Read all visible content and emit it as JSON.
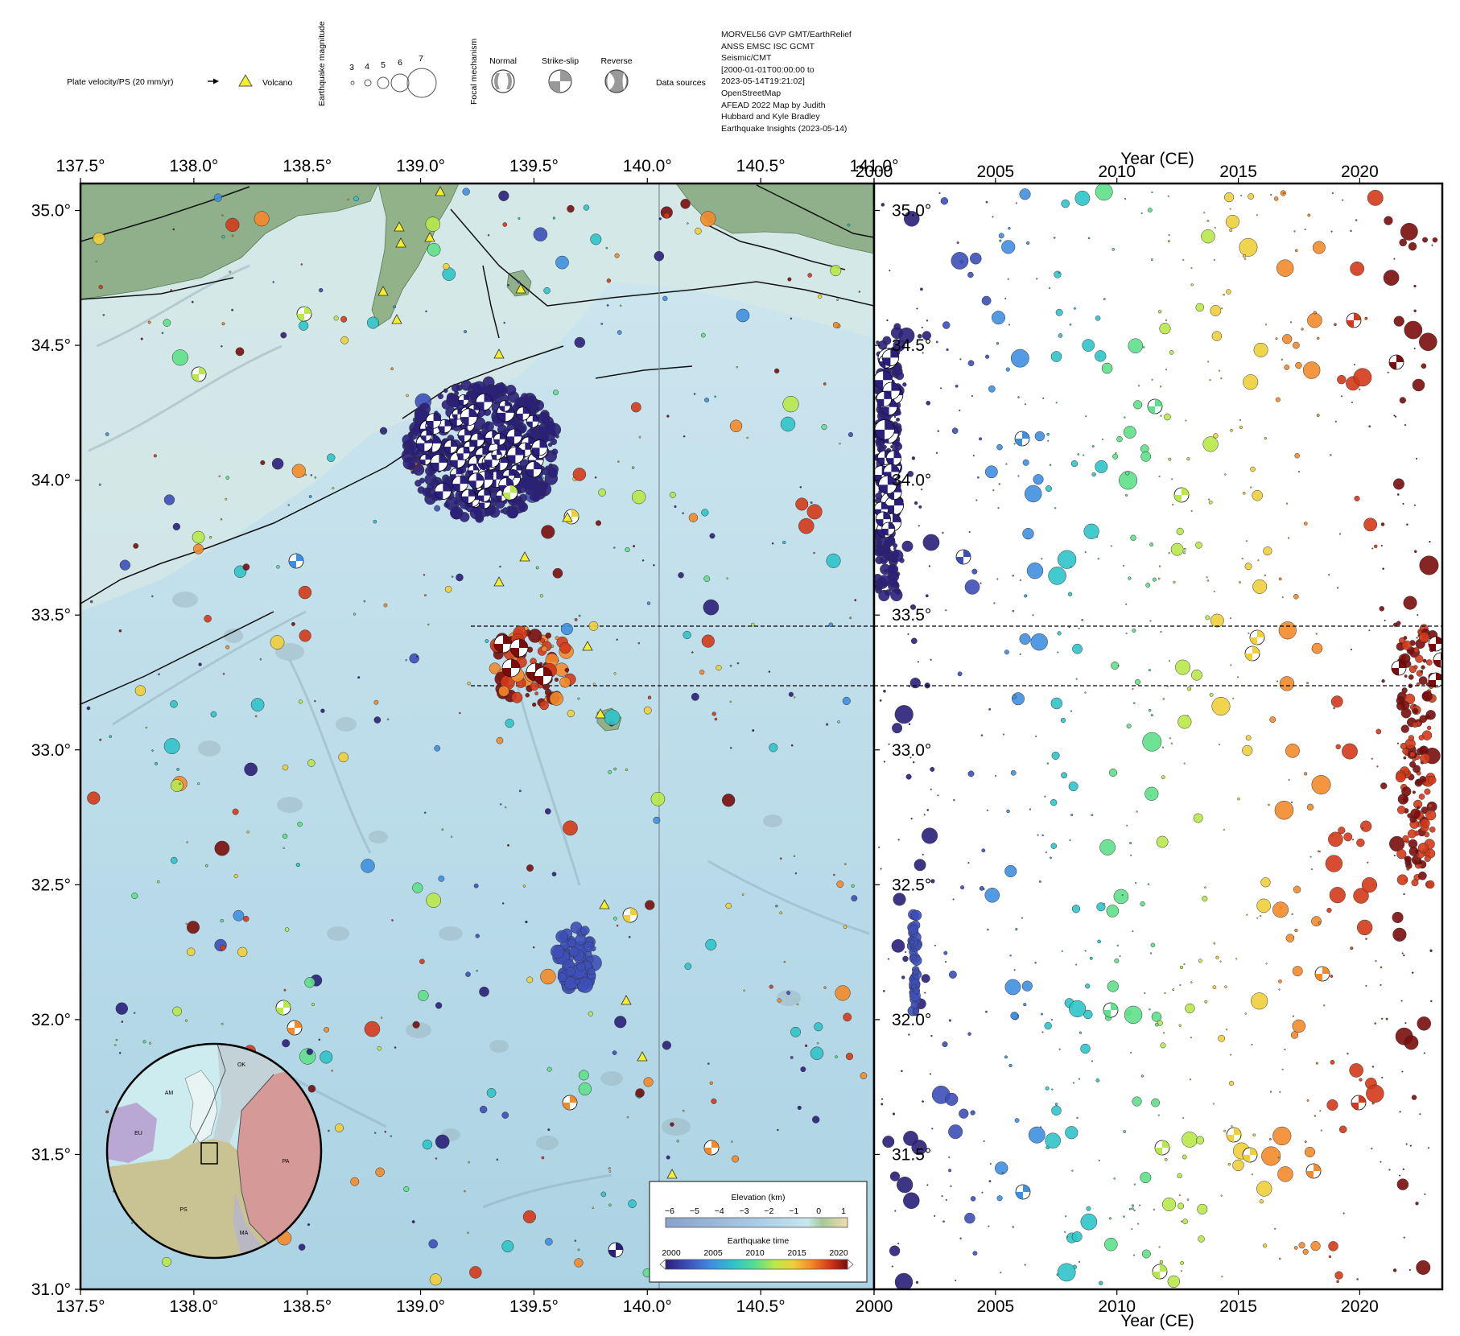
{
  "legend": {
    "plate_velocity_label": "Plate velocity/PS (20 mm/yr)",
    "volcano_label": "Volcano",
    "magnitude_label": "Earthquake magnitude",
    "magnitudes": [
      "3",
      "4",
      "5",
      "6",
      "7"
    ],
    "focal_mechanism_label": "Focal mechanism",
    "focal_types": [
      "Normal",
      "Strike-slip",
      "Reverse"
    ],
    "data_sources_label": "Data sources",
    "data_sources_text": "MORVEL56 GVP GMT/EarthRelief\nANSS EMSC ISC GCMT\nSeismic/CMT\n[2000-01-01T00:00:00 to\n2023-05-14T19:21:02]\nOpenStreetMap\nAFEAD 2022 Map by Judith\nHubbard and Kyle Bradley\nEarthquake Insights (2023-05-14)"
  },
  "map": {
    "lon_ticks": [
      "137.5°",
      "138.0°",
      "138.5°",
      "139.0°",
      "139.5°",
      "140.0°",
      "140.5°",
      "141.0°"
    ],
    "lon_values": [
      137.5,
      138.0,
      138.5,
      139.0,
      139.5,
      140.0,
      140.5,
      141.0
    ],
    "lat_ticks": [
      "35.0°",
      "34.5°",
      "34.0°",
      "33.5°",
      "33.0°",
      "32.5°",
      "32.0°",
      "31.5°",
      "31.0°"
    ],
    "lat_values": [
      35.0,
      34.5,
      34.0,
      33.5,
      33.0,
      32.5,
      32.0,
      31.5,
      31.0
    ],
    "lon_range": [
      137.5,
      141.0
    ],
    "lat_range": [
      31.0,
      35.1
    ]
  },
  "timeplot": {
    "xlabel": "Year (CE)",
    "year_ticks": [
      "2000",
      "2005",
      "2010",
      "2015",
      "2020"
    ],
    "year_values": [
      2000,
      2005,
      2010,
      2015,
      2020
    ],
    "year_range": [
      2000,
      2023.4
    ],
    "lat_ticks": [
      "35.0°",
      "34.5°",
      "34.0°",
      "33.5°",
      "33.0°",
      "32.5°",
      "32.0°",
      "31.5°"
    ],
    "dashed_latitudes": [
      33.47,
      33.25
    ]
  },
  "colorbar": {
    "elevation_title": "Elevation (km)",
    "elevation_ticks": [
      "−6",
      "−5",
      "−4",
      "−3",
      "−2",
      "−1",
      "0",
      "1"
    ],
    "time_title": "Earthquake time",
    "time_ticks": [
      "2000",
      "2005",
      "2010",
      "2015",
      "2020"
    ]
  },
  "inset": {
    "plate_labels": [
      "AM",
      "OK",
      "EU",
      "PA",
      "PS",
      "MA"
    ]
  },
  "colors": {
    "sea": "#b9dbe9",
    "land": "#8fb08a",
    "time_scale": [
      "#2a1f7a",
      "#3d4fb8",
      "#3f8fe0",
      "#2fc4c9",
      "#5fe08a",
      "#b8e84a",
      "#f0cf3a",
      "#f38a2a",
      "#d43a1a",
      "#7a0c0c"
    ]
  }
}
